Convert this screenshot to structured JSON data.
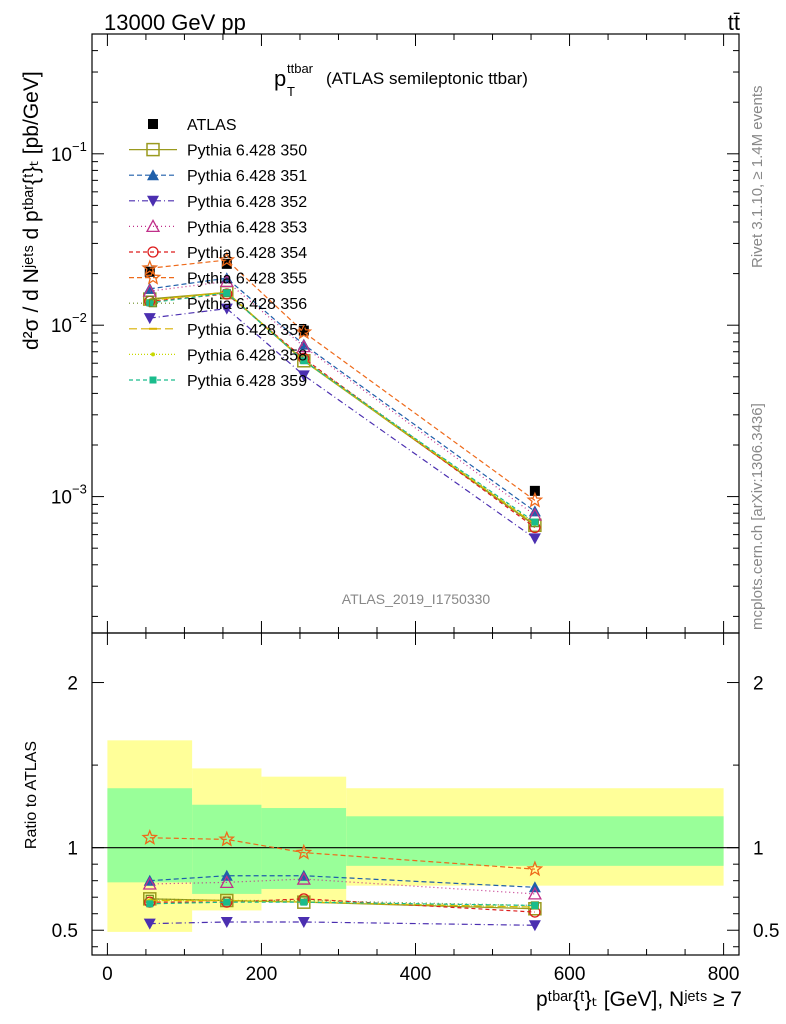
{
  "header": {
    "left": "13000 GeV pp",
    "right": "tt̄"
  },
  "side_labels": {
    "rivet": "Rivet 3.1.10, ≥ 1.4M events",
    "mcplots": "mcplots.cern.ch [arXiv:1306.3436]"
  },
  "watermark": "ATLAS_2019_I1750330",
  "chart_data": [
    {
      "type": "line",
      "panel": "main",
      "title": {
        "main": "p",
        "sup": "ttbar",
        "sub": "T",
        "rest": "(ATLAS semileptonic ttbar)"
      },
      "ylabel": "d²σ / d Nʲᵉᵗˢ d pᵗᵇᵃʳ{ᵗ}ₜ [pb/GeV]",
      "yscale": "log",
      "xlim": [
        -20,
        820
      ],
      "ylim": [
        0.00016,
        0.5
      ],
      "y_ticks": [
        {
          "value": 0.1,
          "base": "10",
          "exp": "−1"
        },
        {
          "value": 0.01,
          "base": "10",
          "exp": "−2"
        },
        {
          "value": 0.001,
          "base": "10",
          "exp": "−3"
        }
      ],
      "legend_position": "top-left",
      "x": [
        55,
        155,
        255,
        555
      ],
      "series": [
        {
          "name": "ATLAS",
          "color": "#000000",
          "marker": "square-filled",
          "dash": "none",
          "values": [
            0.0205,
            0.0228,
            0.0093,
            0.00108
          ]
        },
        {
          "name": "Pythia 6.428 350",
          "color": "#9a9a1e",
          "marker": "square-open",
          "dash": "solid",
          "values": [
            0.0142,
            0.0155,
            0.0062,
            0.00068
          ]
        },
        {
          "name": "Pythia 6.428 351",
          "color": "#1f5faa",
          "marker": "triangle-filled",
          "dash": "5,3",
          "values": [
            0.0163,
            0.0188,
            0.0077,
            0.00082
          ]
        },
        {
          "name": "Pythia 6.428 352",
          "color": "#4b2fb0",
          "marker": "tri-down-filled",
          "dash": "6,3,1,3",
          "values": [
            0.011,
            0.0125,
            0.0051,
            0.00057
          ]
        },
        {
          "name": "Pythia 6.428 353",
          "color": "#c0308a",
          "marker": "triangle-open",
          "dash": "1,3",
          "values": [
            0.0158,
            0.018,
            0.0075,
            0.00078
          ]
        },
        {
          "name": "Pythia 6.428 354",
          "color": "#dd1c1c",
          "marker": "circle-open",
          "dash": "4,3",
          "values": [
            0.0138,
            0.0152,
            0.0064,
            0.00066
          ]
        },
        {
          "name": "Pythia 6.428 355",
          "color": "#ee6a1a",
          "marker": "star-open",
          "dash": "5,3",
          "values": [
            0.0215,
            0.024,
            0.0091,
            0.00095
          ]
        },
        {
          "name": "Pythia 6.428 356",
          "color": "#6b8e23",
          "marker": "square-open-small",
          "dash": "1,3",
          "values": [
            0.0141,
            0.0154,
            0.0063,
            0.0007
          ]
        },
        {
          "name": "Pythia 6.428 357",
          "color": "#d8b000",
          "marker": "dash-tick",
          "dash": "8,4",
          "values": [
            0.014,
            0.0156,
            0.0062,
            0.00069
          ]
        },
        {
          "name": "Pythia 6.428 358",
          "color": "#c8d800",
          "marker": "dot",
          "dash": "1,2",
          "values": [
            0.0139,
            0.0155,
            0.0062,
            0.00069
          ]
        },
        {
          "name": "Pythia 6.428 359",
          "color": "#1abc8c",
          "marker": "square-filled-small",
          "dash": "4,3",
          "values": [
            0.0135,
            0.0154,
            0.0062,
            0.00071
          ]
        }
      ]
    },
    {
      "type": "line",
      "panel": "ratio",
      "ylabel": "Ratio to ATLAS",
      "xlabel": "pᵗᵇᵃʳ{ᵗ}ₜ [GeV], Nʲᵉᵗˢ ≥ 7",
      "xlim": [
        -20,
        820
      ],
      "ylim": [
        0.35,
        2.3
      ],
      "x_ticks": [
        0,
        200,
        400,
        600,
        800
      ],
      "y_ticks": [
        0.5,
        1,
        2
      ],
      "bands": {
        "edges": [
          0,
          110,
          200,
          310,
          800
        ],
        "yellow": [
          [
            0.49,
            1.65
          ],
          [
            0.62,
            1.48
          ],
          [
            0.67,
            1.43
          ],
          [
            0.77,
            1.36
          ]
        ],
        "green": [
          [
            0.79,
            1.36
          ],
          [
            0.72,
            1.26
          ],
          [
            0.75,
            1.24
          ],
          [
            0.89,
            1.19
          ]
        ],
        "yellow_color": "#ffff99",
        "green_color": "#99ff99"
      },
      "x": [
        55,
        155,
        255,
        555
      ],
      "series": [
        {
          "name": "Pythia 6.428 350",
          "values": [
            0.69,
            0.68,
            0.67,
            0.63
          ]
        },
        {
          "name": "Pythia 6.428 351",
          "values": [
            0.8,
            0.83,
            0.83,
            0.76
          ]
        },
        {
          "name": "Pythia 6.428 352",
          "values": [
            0.54,
            0.55,
            0.55,
            0.53
          ]
        },
        {
          "name": "Pythia 6.428 353",
          "values": [
            0.78,
            0.79,
            0.81,
            0.72
          ]
        },
        {
          "name": "Pythia 6.428 354",
          "values": [
            0.67,
            0.67,
            0.69,
            0.61
          ]
        },
        {
          "name": "Pythia 6.428 355",
          "values": [
            1.06,
            1.05,
            0.97,
            0.87
          ]
        },
        {
          "name": "Pythia 6.428 356",
          "values": [
            0.69,
            0.68,
            0.68,
            0.65
          ]
        },
        {
          "name": "Pythia 6.428 357",
          "values": [
            0.68,
            0.68,
            0.67,
            0.64
          ]
        },
        {
          "name": "Pythia 6.428 358",
          "values": [
            0.68,
            0.68,
            0.67,
            0.64
          ]
        },
        {
          "name": "Pythia 6.428 359",
          "values": [
            0.66,
            0.67,
            0.67,
            0.65
          ]
        }
      ]
    }
  ]
}
